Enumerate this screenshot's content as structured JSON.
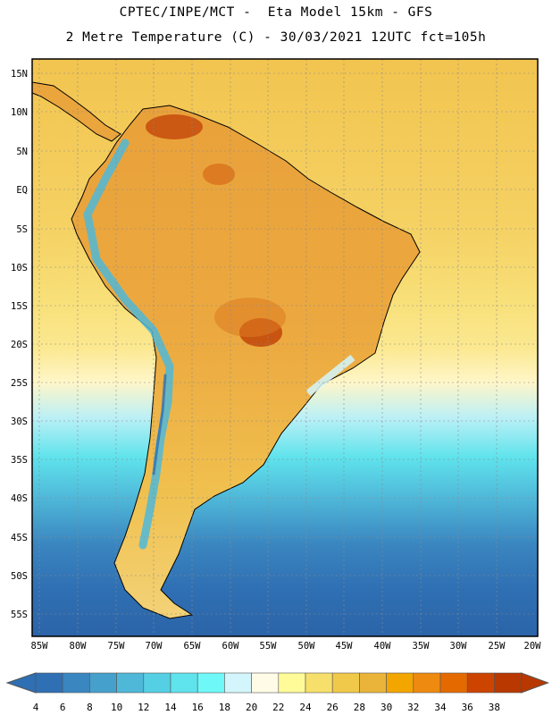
{
  "header": {
    "line1": "CPTEC/INPE/MCT -  Eta Model 15km - GFS",
    "line2": "2 Metre Temperature (C) - 30/03/2021 12UTC fct=105h"
  },
  "map": {
    "lat_labels": [
      "15N",
      "10N",
      "5N",
      "EQ",
      "5S",
      "10S",
      "15S",
      "20S",
      "25S",
      "30S",
      "35S",
      "40S",
      "45S",
      "50S",
      "55S"
    ],
    "lon_labels": [
      "85W",
      "80W",
      "75W",
      "70W",
      "65W",
      "60W",
      "55W",
      "50W",
      "45W",
      "40W",
      "35W",
      "30W",
      "25W",
      "20W"
    ]
  },
  "colorbar": {
    "colors": [
      "#2f6fb3",
      "#3a86c0",
      "#45a0cc",
      "#4fb8d9",
      "#55cfe4",
      "#5fe3ec",
      "#6ff8f8",
      "#d2f6fb",
      "#fffbe6",
      "#fffb99",
      "#f7df6b",
      "#f0c94a",
      "#eab43a",
      "#f3a500",
      "#ef8a10",
      "#e46a00",
      "#cc4400",
      "#b83800"
    ],
    "labels": [
      "4",
      "6",
      "8",
      "10",
      "12",
      "14",
      "16",
      "18",
      "20",
      "22",
      "24",
      "26",
      "28",
      "30",
      "32",
      "34",
      "36",
      "38"
    ]
  }
}
